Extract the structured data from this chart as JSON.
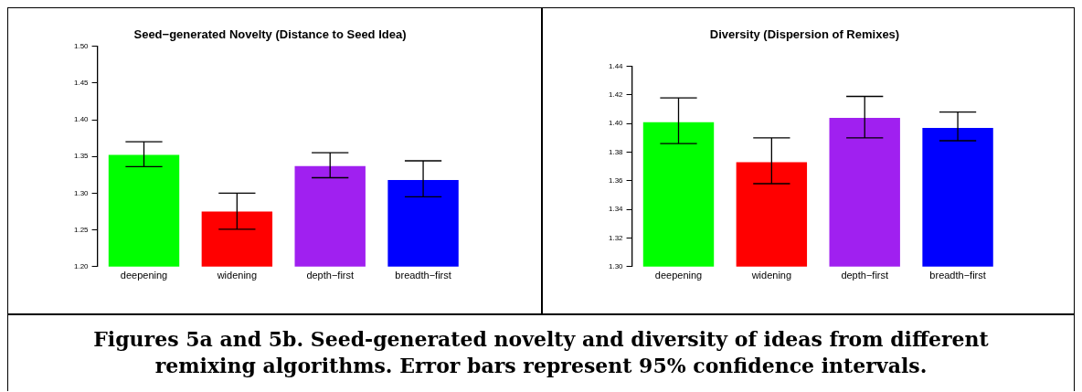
{
  "chart_data": [
    {
      "type": "bar",
      "title": "Seed−generated Novelty (Distance to Seed Idea)",
      "categories": [
        "deepening",
        "widening",
        "depth−first",
        "breadth−first"
      ],
      "values": [
        1.352,
        1.275,
        1.337,
        1.318
      ],
      "colors": [
        "#00ff00",
        "#ff0000",
        "#a020f0",
        "#0000ff"
      ],
      "errors": [
        [
          1.336,
          1.37
        ],
        [
          1.251,
          1.3
        ],
        [
          1.321,
          1.355
        ],
        [
          1.295,
          1.344
        ]
      ],
      "ylim": [
        1.2,
        1.5
      ],
      "yticks": [
        {
          "value": 1.2,
          "label": "1.20"
        },
        {
          "value": 1.25,
          "label": "1.25"
        },
        {
          "value": 1.3,
          "label": "1.30"
        },
        {
          "value": 1.35,
          "label": "1.35"
        },
        {
          "value": 1.4,
          "label": "1.40"
        },
        {
          "value": 1.45,
          "label": "1.45"
        },
        {
          "value": 1.5,
          "label": "1.50"
        }
      ],
      "grid": false,
      "legend": false,
      "annotations": [
        "Figures 5a and 5b. Seed-generated novelty and diversity of ideas from different remixing algorithms. Error bars represent 95% confidence intervals."
      ]
    },
    {
      "type": "bar",
      "title": "Diversity (Dispersion of Remixes)",
      "categories": [
        "deepening",
        "widening",
        "depth−first",
        "breadth−first"
      ],
      "values": [
        1.401,
        1.373,
        1.404,
        1.397
      ],
      "colors": [
        "#00ff00",
        "#ff0000",
        "#a020f0",
        "#0000ff"
      ],
      "errors": [
        [
          1.386,
          1.418
        ],
        [
          1.358,
          1.39
        ],
        [
          1.39,
          1.419
        ],
        [
          1.388,
          1.408
        ]
      ],
      "ylim": [
        1.3,
        1.44
      ],
      "yticks": [
        {
          "value": 1.3,
          "label": "1.30"
        },
        {
          "value": 1.32,
          "label": "1.32"
        },
        {
          "value": 1.34,
          "label": "1.34"
        },
        {
          "value": 1.36,
          "label": "1.36"
        },
        {
          "value": 1.38,
          "label": "1.38"
        },
        {
          "value": 1.4,
          "label": "1.40"
        },
        {
          "value": 1.42,
          "label": "1.42"
        },
        {
          "value": 1.44,
          "label": "1.44"
        }
      ],
      "grid": false,
      "legend": false
    }
  ]
}
